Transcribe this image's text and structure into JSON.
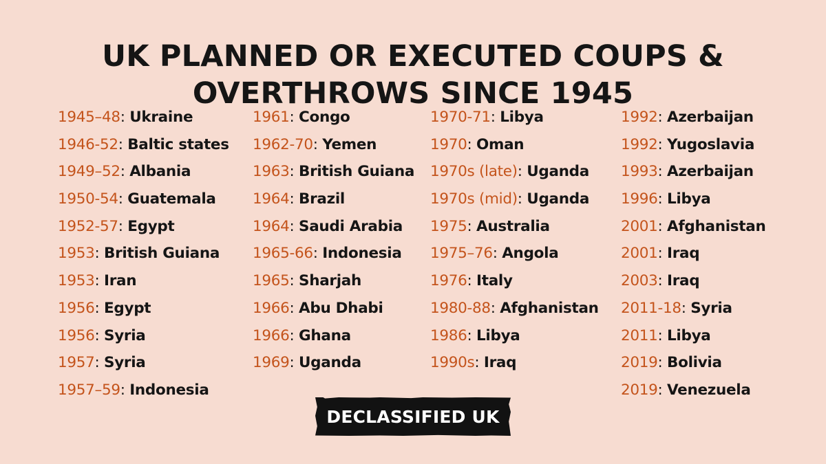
{
  "title": {
    "line1": "UK PLANNED OR EXECUTED COUPS &",
    "line2": "OVERTHROWS SINCE 1945"
  },
  "columns": [
    [
      {
        "year": "1945–48",
        "place": "Ukraine"
      },
      {
        "year": "1946-52",
        "place": "Baltic states"
      },
      {
        "year": "1949–52",
        "place": "Albania"
      },
      {
        "year": "1950-54",
        "place": "Guatemala"
      },
      {
        "year": "1952-57",
        "place": "Egypt"
      },
      {
        "year": "1953",
        "place": "British Guiana"
      },
      {
        "year": "1953",
        "place": "Iran"
      },
      {
        "year": "1956",
        "place": "Egypt"
      },
      {
        "year": "1956",
        "place": "Syria"
      },
      {
        "year": "1957",
        "place": "Syria"
      },
      {
        "year": "1957–59",
        "place": "Indonesia"
      }
    ],
    [
      {
        "year": "1961",
        "place": "Congo"
      },
      {
        "year": "1962-70",
        "place": "Yemen"
      },
      {
        "year": "1963",
        "place": "British Guiana"
      },
      {
        "year": "1964",
        "place": "Brazil"
      },
      {
        "year": "1964",
        "place": "Saudi Arabia"
      },
      {
        "year": "1965-66",
        "place": "Indonesia"
      },
      {
        "year": "1965",
        "place": "Sharjah"
      },
      {
        "year": "1966",
        "place": "Abu Dhabi"
      },
      {
        "year": "1966",
        "place": "Ghana"
      },
      {
        "year": "1969",
        "place": "Uganda"
      }
    ],
    [
      {
        "year": "1970-71",
        "place": "Libya"
      },
      {
        "year": "1970",
        "place": "Oman"
      },
      {
        "year": "1970s (late)",
        "place": "Uganda"
      },
      {
        "year": "1970s (mid)",
        "place": "Uganda"
      },
      {
        "year": "1975",
        "place": "Australia"
      },
      {
        "year": "1975–76",
        "place": "Angola"
      },
      {
        "year": "1976",
        "place": "Italy"
      },
      {
        "year": "1980-88",
        "place": "Afghanistan"
      },
      {
        "year": "1986",
        "place": "Libya"
      },
      {
        "year": "1990s",
        "place": "Iraq"
      }
    ],
    [
      {
        "year": "1992",
        "place": "Azerbaijan"
      },
      {
        "year": "1992",
        "place": "Yugoslavia"
      },
      {
        "year": "1993",
        "place": "Azerbaijan"
      },
      {
        "year": "1996",
        "place": "Libya"
      },
      {
        "year": "2001",
        "place": "Afghanistan"
      },
      {
        "year": "2001",
        "place": "Iraq"
      },
      {
        "year": "2003",
        "place": "Iraq"
      },
      {
        "year": "2011-18",
        "place": "Syria"
      },
      {
        "year": "2011",
        "place": "Libya"
      },
      {
        "year": "2019",
        "place": "Bolivia"
      },
      {
        "year": "2019",
        "place": "Venezuela"
      }
    ]
  ],
  "logo": {
    "text": "DECLASSIFIED UK"
  },
  "colors": {
    "background": "#f7dcd1",
    "year": "#c4541c",
    "text": "#151515",
    "logo_background": "#121212",
    "logo_text": "#ffffff"
  }
}
